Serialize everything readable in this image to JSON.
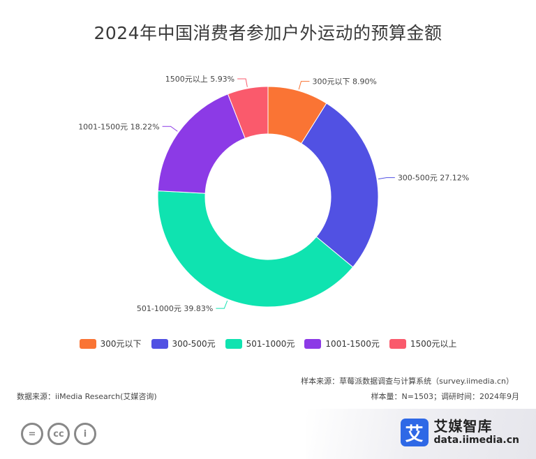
{
  "chart_data": {
    "type": "pie",
    "title": "2024年中国消费者参加户外运动的预算金额",
    "categories": [
      "300元以下",
      "300-500元",
      "501-1000元",
      "1001-1500元",
      "1500元以上"
    ],
    "values": [
      8.9,
      27.12,
      39.83,
      18.22,
      5.93
    ],
    "unit": "%",
    "slice_labels": [
      "300元以下 8.90%",
      "300-500元 27.12%",
      "501-1000元 39.83%",
      "1001-1500元 18.22%",
      "1500元以上 5.93%"
    ],
    "colors": [
      "#fa7434",
      "#5151e3",
      "#0fe3b0",
      "#8c3ae6",
      "#fa5a6c"
    ],
    "legend_position": "bottom",
    "donut": true
  },
  "footer": {
    "sample_source": "样本来源：草莓派数据调查与计算系统（survey.iimedia.cn）",
    "data_source": "数据来源：iiMedia Research(艾媒咨询)",
    "sample_size": "样本量：N=1503；调研时间：2024年9月"
  },
  "license_icons": [
    "equals-icon",
    "cc-icon",
    "person-icon"
  ],
  "license_glyphs": [
    "=",
    "cc",
    "i"
  ],
  "brand": {
    "logo_char": "艾",
    "name": "艾媒智库",
    "url": "data.iimedia.cn"
  }
}
